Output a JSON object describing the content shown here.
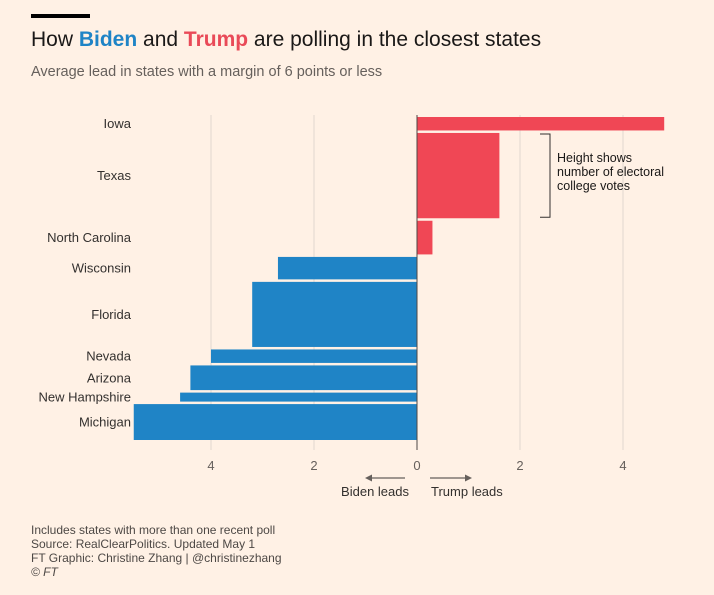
{
  "header": {
    "title_pre": "How ",
    "title_biden": "Biden",
    "title_mid": " and ",
    "title_trump": "Trump",
    "title_post": " are polling in the closest states",
    "subtitle": "Average lead in states with a margin of 6 points or less"
  },
  "colors": {
    "trump": "#f04755",
    "biden": "#1f84c6",
    "background": "#fff1e5",
    "grid": "#e0d8d0"
  },
  "chart_data": {
    "type": "bar",
    "orientation": "horizontal",
    "bar_height_encodes": "electoral college votes",
    "categories": [
      "Iowa",
      "Texas",
      "North Carolina",
      "Wisconsin",
      "Florida",
      "Nevada",
      "Arizona",
      "New Hampshire",
      "Michigan"
    ],
    "values": [
      4.8,
      1.6,
      0.3,
      -2.7,
      -3.2,
      -4.0,
      -4.4,
      -4.6,
      -5.5
    ],
    "electoral_votes": [
      6,
      38,
      15,
      10,
      29,
      6,
      11,
      4,
      16
    ],
    "xlim": [
      -5.6,
      5.0
    ],
    "xticks": [
      -4,
      -2,
      0,
      2,
      4
    ],
    "xtick_labels": [
      "4",
      "2",
      "0",
      "2",
      "4"
    ],
    "arrow_labels": {
      "left": "Biden leads",
      "right": "Trump leads"
    },
    "annotation": "Height shows number of electoral college votes",
    "annotation_lines": [
      "Height shows",
      "number of electoral",
      "college votes"
    ],
    "annotation_target": "Texas",
    "grid": true
  },
  "footer": {
    "note": "Includes states with more than one recent poll",
    "source": "Source: RealClearPolitics. Updated May 1",
    "credit": "FT Graphic: Christine Zhang | @christinezhang",
    "copyright": "© FT"
  }
}
